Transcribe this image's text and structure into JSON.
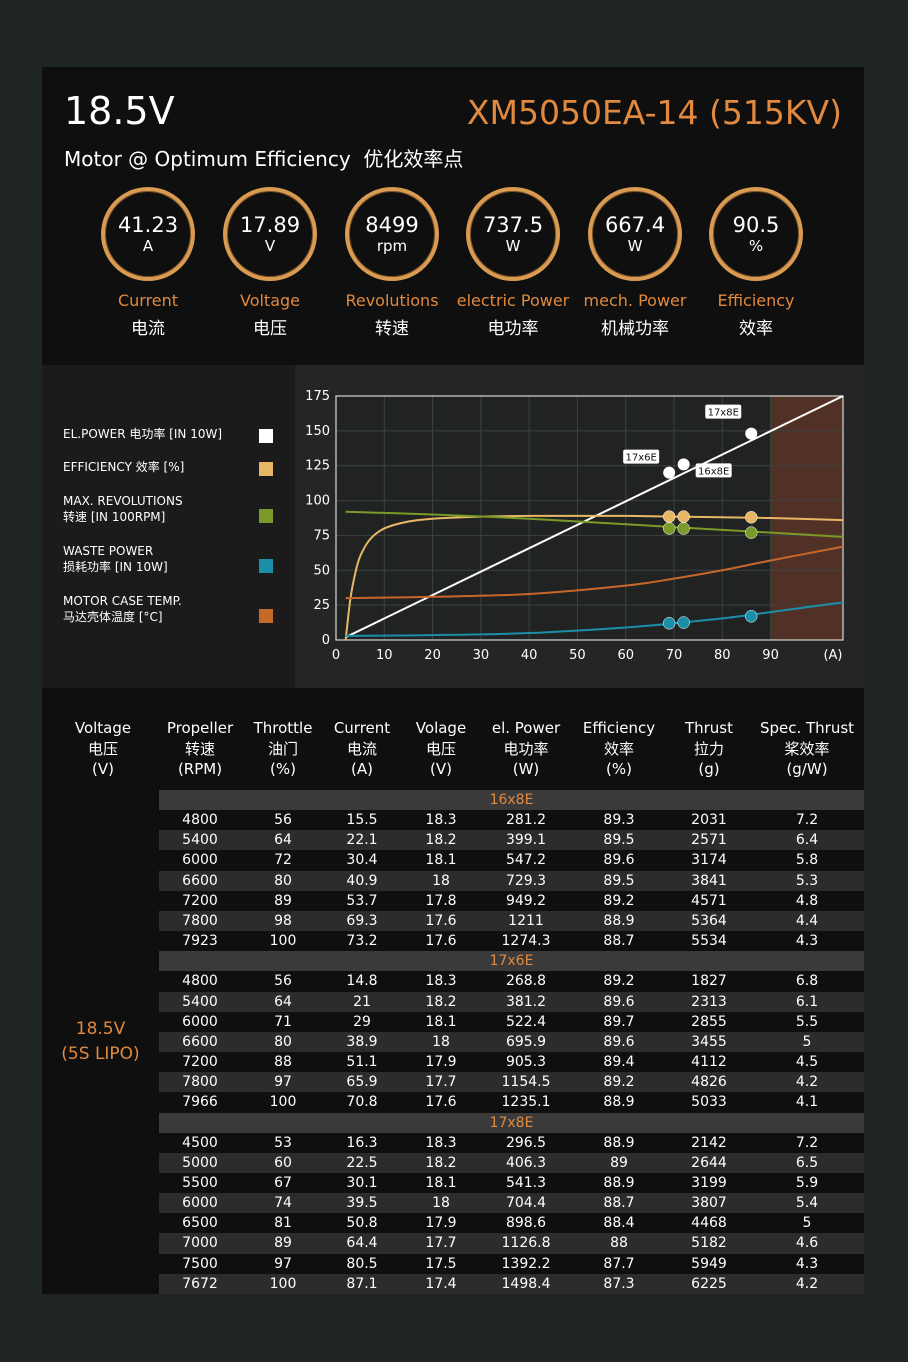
{
  "header": {
    "voltage": "18.5V",
    "model": "XM5050EA-14 (515KV)",
    "subtitle": "Motor @ Optimum Efficiency  优化效率点"
  },
  "gauges": [
    {
      "value": "41.23",
      "unit": "A",
      "label_en": "Current",
      "label_cn": "电流"
    },
    {
      "value": "17.89",
      "unit": "V",
      "label_en": "Voltage",
      "label_cn": "电压"
    },
    {
      "value": "8499",
      "unit": "rpm",
      "label_en": "Revolutions",
      "label_cn": "转速"
    },
    {
      "value": "737.5",
      "unit": "W",
      "label_en": "electric Power",
      "label_cn": "电功率"
    },
    {
      "value": "667.4",
      "unit": "W",
      "label_en": "mech. Power",
      "label_cn": "机械功率"
    },
    {
      "value": "90.5",
      "unit": "%",
      "label_en": "Efficiency",
      "label_cn": "效率"
    }
  ],
  "legend": [
    {
      "line1": "EL.POWER 电功率 [IN 10W]",
      "line2": "",
      "color": "#ffffff"
    },
    {
      "line1": "EFFICIENCY 效率 [%]",
      "line2": "",
      "color": "#e8b765"
    },
    {
      "line1": "MAX. REVOLUTIONS",
      "line2": "转速 [IN 100RPM]",
      "color": "#7b9a2a"
    },
    {
      "line1": "WASTE POWER",
      "line2": "损耗功率 [IN 10W]",
      "color": "#1c8fa8"
    },
    {
      "line1": "MOTOR CASE TEMP.",
      "line2": "马达壳体温度 [°C]",
      "color": "#c8672a"
    }
  ],
  "chart_data": {
    "type": "line",
    "x_unit_label": "(A)",
    "xlim": [
      0,
      105
    ],
    "ylim": [
      0,
      175
    ],
    "x_ticks": [
      0,
      10,
      20,
      30,
      40,
      50,
      60,
      70,
      80,
      90
    ],
    "y_ticks": [
      0,
      25,
      50,
      75,
      100,
      125,
      150,
      175
    ],
    "shaded_region": [
      90,
      105
    ],
    "series": [
      {
        "key": "el_power",
        "color": "#ffffff",
        "points": [
          [
            2,
            2
          ],
          [
            105,
            175
          ]
        ]
      },
      {
        "key": "efficiency",
        "color": "#e8b765",
        "points": [
          [
            2,
            0
          ],
          [
            3,
            30
          ],
          [
            4,
            48
          ],
          [
            5,
            60
          ],
          [
            7,
            72
          ],
          [
            10,
            80
          ],
          [
            15,
            85
          ],
          [
            20,
            87
          ],
          [
            30,
            88.5
          ],
          [
            40,
            89
          ],
          [
            50,
            89
          ],
          [
            60,
            89
          ],
          [
            70,
            88.5
          ],
          [
            80,
            88
          ],
          [
            90,
            87.5
          ],
          [
            105,
            86
          ]
        ]
      },
      {
        "key": "revolutions",
        "color": "#7b9a2a",
        "points": [
          [
            2,
            92
          ],
          [
            20,
            90
          ],
          [
            40,
            87
          ],
          [
            60,
            83
          ],
          [
            80,
            79
          ],
          [
            105,
            74
          ]
        ]
      },
      {
        "key": "waste_power",
        "color": "#1c8fa8",
        "points": [
          [
            2,
            3
          ],
          [
            20,
            3.5
          ],
          [
            40,
            5
          ],
          [
            60,
            9
          ],
          [
            70,
            12
          ],
          [
            80,
            15.5
          ],
          [
            90,
            20
          ],
          [
            105,
            27
          ]
        ]
      },
      {
        "key": "case_temp",
        "color": "#c8672a",
        "points": [
          [
            2,
            30
          ],
          [
            20,
            31
          ],
          [
            40,
            33
          ],
          [
            60,
            39
          ],
          [
            70,
            44
          ],
          [
            80,
            50
          ],
          [
            90,
            57
          ],
          [
            105,
            67
          ]
        ]
      }
    ],
    "markers": [
      {
        "label": "17x6E",
        "x": 69,
        "el_power": 120,
        "efficiency": 88.5,
        "revolutions": 80,
        "waste_power": 12
      },
      {
        "label": "16x8E",
        "x": 72,
        "el_power": 126,
        "efficiency": 88.5,
        "revolutions": 80,
        "waste_power": 12.5
      },
      {
        "label": "17x8E",
        "x": 86,
        "el_power": 148,
        "efficiency": 88,
        "revolutions": 77,
        "waste_power": 17
      }
    ]
  },
  "table": {
    "headers": [
      {
        "l1": "Voltage",
        "l2": "电压",
        "l3": "(V)"
      },
      {
        "l1": "Propeller",
        "l2": "转速",
        "l3": "(RPM)"
      },
      {
        "l1": "Throttle",
        "l2": "油门",
        "l3": "(%)"
      },
      {
        "l1": "Current",
        "l2": "电流",
        "l3": "(A)"
      },
      {
        "l1": "Volage",
        "l2": "电压",
        "l3": "(V)"
      },
      {
        "l1": "el. Power",
        "l2": "电功率",
        "l3": "(W)"
      },
      {
        "l1": "Efficiency",
        "l2": "效率",
        "l3": "(%)"
      },
      {
        "l1": "Thrust",
        "l2": "拉力",
        "l3": "(g)"
      },
      {
        "l1": "Spec. Thrust",
        "l2": "桨效率",
        "l3": "(g/W)"
      }
    ],
    "voltage_l1": "18.5V",
    "voltage_l2": "(5S LIPO)",
    "groups": [
      {
        "prop": "16x8E",
        "rows": [
          [
            "4800",
            "56",
            "15.5",
            "18.3",
            "281.2",
            "89.3",
            "2031",
            "7.2"
          ],
          [
            "5400",
            "64",
            "22.1",
            "18.2",
            "399.1",
            "89.5",
            "2571",
            "6.4"
          ],
          [
            "6000",
            "72",
            "30.4",
            "18.1",
            "547.2",
            "89.6",
            "3174",
            "5.8"
          ],
          [
            "6600",
            "80",
            "40.9",
            "18",
            "729.3",
            "89.5",
            "3841",
            "5.3"
          ],
          [
            "7200",
            "89",
            "53.7",
            "17.8",
            "949.2",
            "89.2",
            "4571",
            "4.8"
          ],
          [
            "7800",
            "98",
            "69.3",
            "17.6",
            "1211",
            "88.9",
            "5364",
            "4.4"
          ],
          [
            "7923",
            "100",
            "73.2",
            "17.6",
            "1274.3",
            "88.7",
            "5534",
            "4.3"
          ]
        ]
      },
      {
        "prop": "17x6E",
        "rows": [
          [
            "4800",
            "56",
            "14.8",
            "18.3",
            "268.8",
            "89.2",
            "1827",
            "6.8"
          ],
          [
            "5400",
            "64",
            "21",
            "18.2",
            "381.2",
            "89.6",
            "2313",
            "6.1"
          ],
          [
            "6000",
            "71",
            "29",
            "18.1",
            "522.4",
            "89.7",
            "2855",
            "5.5"
          ],
          [
            "6600",
            "80",
            "38.9",
            "18",
            "695.9",
            "89.6",
            "3455",
            "5"
          ],
          [
            "7200",
            "88",
            "51.1",
            "17.9",
            "905.3",
            "89.4",
            "4112",
            "4.5"
          ],
          [
            "7800",
            "97",
            "65.9",
            "17.7",
            "1154.5",
            "89.2",
            "4826",
            "4.2"
          ],
          [
            "7966",
            "100",
            "70.8",
            "17.6",
            "1235.1",
            "88.9",
            "5033",
            "4.1"
          ]
        ]
      },
      {
        "prop": "17x8E",
        "rows": [
          [
            "4500",
            "53",
            "16.3",
            "18.3",
            "296.5",
            "88.9",
            "2142",
            "7.2"
          ],
          [
            "5000",
            "60",
            "22.5",
            "18.2",
            "406.3",
            "89",
            "2644",
            "6.5"
          ],
          [
            "5500",
            "67",
            "30.1",
            "18.1",
            "541.3",
            "88.9",
            "3199",
            "5.9"
          ],
          [
            "6000",
            "74",
            "39.5",
            "18",
            "704.4",
            "88.7",
            "3807",
            "5.4"
          ],
          [
            "6500",
            "81",
            "50.8",
            "17.9",
            "898.6",
            "88.4",
            "4468",
            "5"
          ],
          [
            "7000",
            "89",
            "64.4",
            "17.7",
            "1126.8",
            "88",
            "5182",
            "4.6"
          ],
          [
            "7500",
            "97",
            "80.5",
            "17.5",
            "1392.2",
            "87.7",
            "5949",
            "4.3"
          ],
          [
            "7672",
            "100",
            "87.1",
            "17.4",
            "1498.4",
            "87.3",
            "6225",
            "4.2"
          ]
        ]
      }
    ]
  }
}
